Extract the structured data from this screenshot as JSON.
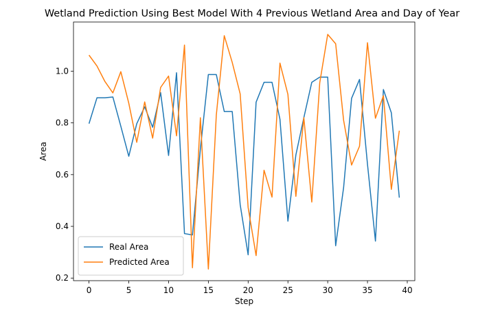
{
  "chart_data": {
    "type": "line",
    "title": "Wetland Prediction Using Best Model With 4 Previous Wetland Area and Day of Year",
    "xlabel": "Step",
    "ylabel": "Area",
    "xlim": [
      -1.95,
      40.95
    ],
    "ylim": [
      0.19,
      1.19
    ],
    "xticks": [
      0,
      5,
      10,
      15,
      20,
      25,
      30,
      35,
      40
    ],
    "yticks": [
      0.2,
      0.4,
      0.6,
      0.8,
      1.0
    ],
    "ytick_labels": [
      "0.2",
      "0.4",
      "0.6",
      "0.8",
      "1.0"
    ],
    "grid": false,
    "legend_position": "lower-left",
    "x": [
      0,
      1,
      2,
      3,
      4,
      5,
      6,
      7,
      8,
      9,
      10,
      11,
      12,
      13,
      14,
      15,
      16,
      17,
      18,
      19,
      20,
      21,
      22,
      23,
      24,
      25,
      26,
      27,
      28,
      29,
      30,
      31,
      32,
      33,
      34,
      35,
      36,
      37,
      38,
      39
    ],
    "series": [
      {
        "name": "Real Area",
        "color": "#1f77b4",
        "values": [
          0.797,
          0.897,
          0.897,
          0.9,
          0.787,
          0.671,
          0.797,
          0.862,
          0.783,
          0.917,
          0.674,
          0.994,
          0.372,
          0.367,
          0.7,
          0.987,
          0.987,
          0.844,
          0.844,
          0.484,
          0.29,
          0.88,
          0.957,
          0.957,
          0.814,
          0.42,
          0.676,
          0.82,
          0.957,
          0.977,
          0.977,
          0.325,
          0.55,
          0.895,
          0.968,
          0.64,
          0.343,
          0.929,
          0.839,
          0.511
        ]
      },
      {
        "name": "Predicted Area",
        "color": "#ff7f0e",
        "values": [
          1.062,
          1.02,
          0.96,
          0.916,
          0.998,
          0.876,
          0.725,
          0.881,
          0.741,
          0.937,
          0.981,
          0.75,
          1.101,
          0.24,
          0.82,
          0.235,
          0.83,
          1.137,
          1.034,
          0.912,
          0.473,
          0.287,
          0.617,
          0.513,
          1.031,
          0.91,
          0.516,
          0.82,
          0.494,
          0.955,
          1.142,
          1.106,
          0.81,
          0.637,
          0.71,
          1.11,
          0.818,
          0.905,
          0.543,
          0.77
        ]
      }
    ]
  }
}
